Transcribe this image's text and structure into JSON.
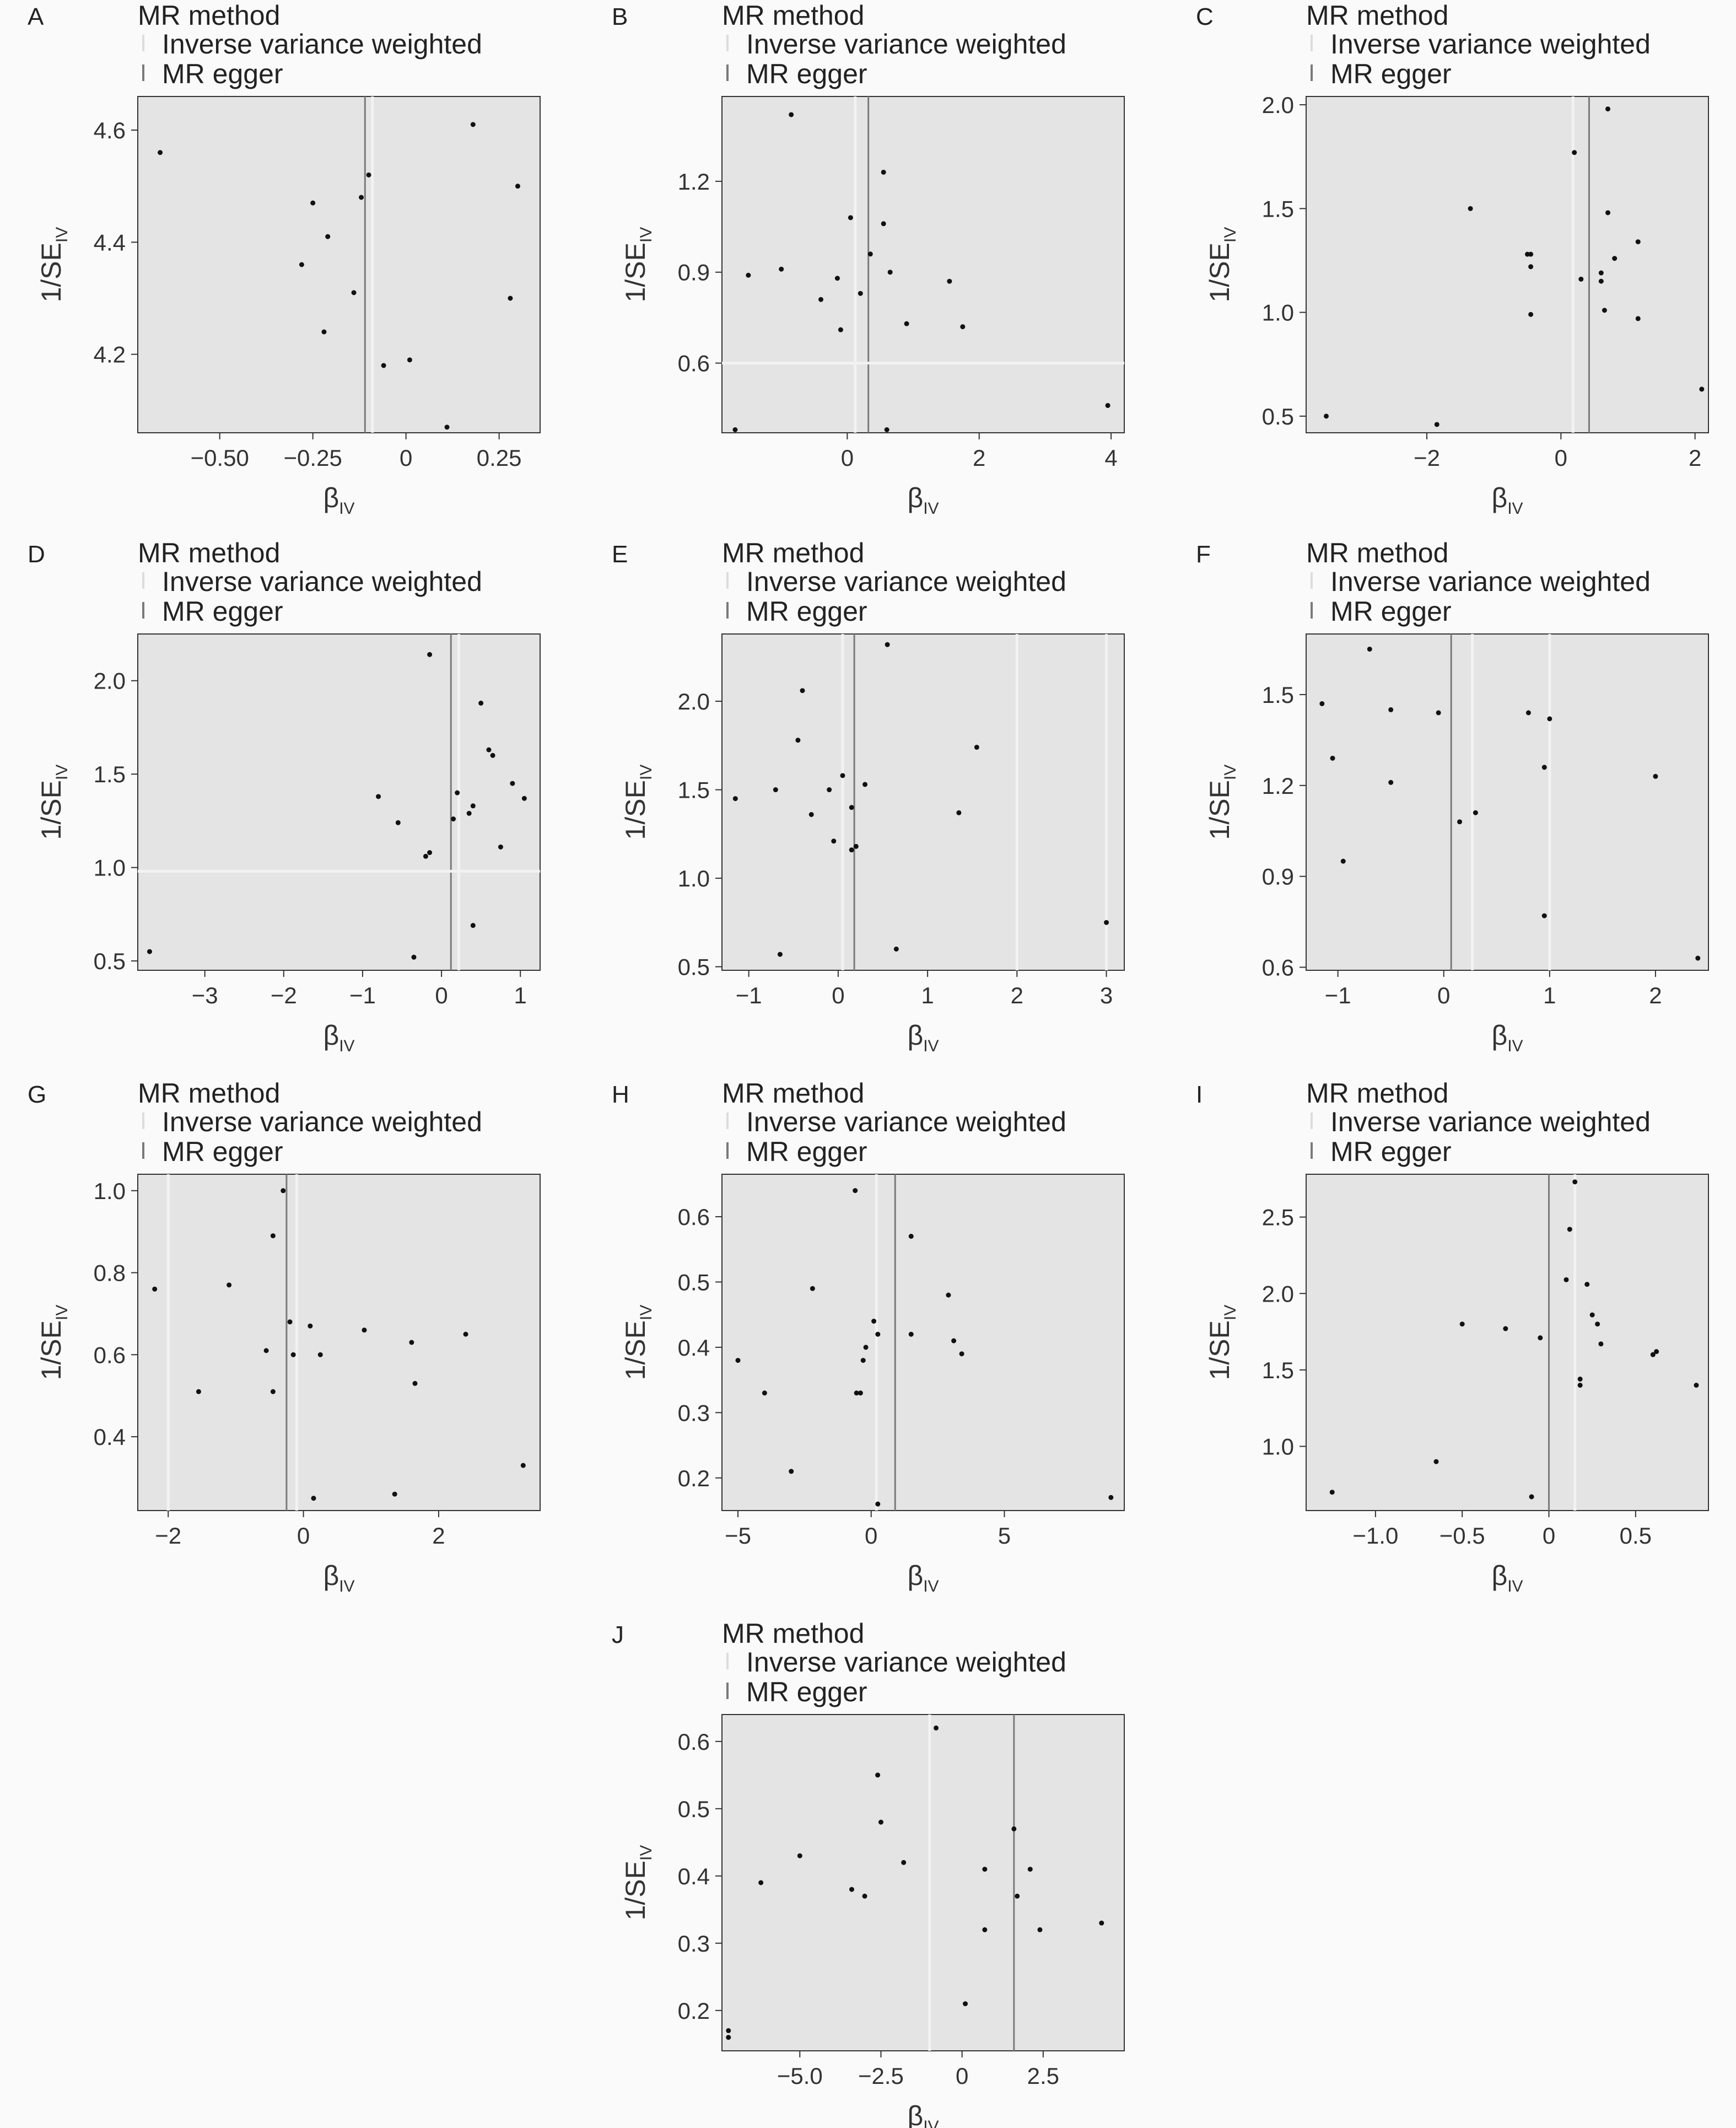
{
  "legend": {
    "title": "MR method",
    "items": [
      {
        "label": "Inverse variance weighted",
        "color": "#f2f2f2"
      },
      {
        "label": "MR egger",
        "color": "#7a7a7a"
      }
    ]
  },
  "axis_labels": {
    "x_main": "β",
    "x_sub": "IV",
    "y_main": "1/SE",
    "y_sub": "IV"
  },
  "chart_data": [
    {
      "letter": "A",
      "type": "scatter",
      "xlim": [
        -0.72,
        0.36
      ],
      "ylim": [
        4.06,
        4.66
      ],
      "xticks": [
        -0.5,
        -0.25,
        0,
        0.25
      ],
      "xtick_labels": [
        "−0.50",
        "−0.25",
        "0",
        "0.25"
      ],
      "yticks": [
        4.2,
        4.4,
        4.6
      ],
      "ytick_labels": [
        "4.2",
        "4.4",
        "4.6"
      ],
      "points": [
        [
          -0.66,
          4.56
        ],
        [
          -0.28,
          4.36
        ],
        [
          -0.25,
          4.47
        ],
        [
          -0.22,
          4.24
        ],
        [
          -0.21,
          4.41
        ],
        [
          -0.14,
          4.31
        ],
        [
          -0.12,
          4.48
        ],
        [
          -0.1,
          4.52
        ],
        [
          -0.06,
          4.18
        ],
        [
          0.01,
          4.19
        ],
        [
          0.11,
          4.07
        ],
        [
          0.18,
          4.61
        ],
        [
          0.28,
          4.3
        ],
        [
          0.3,
          4.5
        ]
      ],
      "vlines": [
        {
          "method": "Inverse variance weighted",
          "x": -0.09
        },
        {
          "method": "MR egger",
          "x": -0.11
        }
      ],
      "hlines": []
    },
    {
      "letter": "B",
      "type": "scatter",
      "xlim": [
        -1.9,
        4.2
      ],
      "ylim": [
        0.37,
        1.48
      ],
      "xticks": [
        0,
        2,
        4
      ],
      "xtick_labels": [
        "0",
        "2",
        "4"
      ],
      "yticks": [
        0.6,
        0.9,
        1.2
      ],
      "ytick_labels": [
        "0.6",
        "0.9",
        "1.2"
      ],
      "points": [
        [
          -1.7,
          0.38
        ],
        [
          -1.5,
          0.89
        ],
        [
          -1.0,
          0.91
        ],
        [
          -0.85,
          1.42
        ],
        [
          -0.4,
          0.81
        ],
        [
          -0.15,
          0.88
        ],
        [
          -0.1,
          0.71
        ],
        [
          0.05,
          1.08
        ],
        [
          0.2,
          0.83
        ],
        [
          0.35,
          0.96
        ],
        [
          0.55,
          1.23
        ],
        [
          0.55,
          1.06
        ],
        [
          0.6,
          0.38
        ],
        [
          0.65,
          0.9
        ],
        [
          0.9,
          0.73
        ],
        [
          1.55,
          0.87
        ],
        [
          1.75,
          0.72
        ],
        [
          3.95,
          0.46
        ]
      ],
      "vlines": [
        {
          "method": "Inverse variance weighted",
          "x": 0.12
        },
        {
          "method": "MR egger",
          "x": 0.32
        }
      ],
      "hlines": [
        {
          "method": "Inverse variance weighted",
          "y": 0.6
        }
      ]
    },
    {
      "letter": "C",
      "type": "scatter",
      "xlim": [
        -3.8,
        2.2
      ],
      "ylim": [
        0.42,
        2.04
      ],
      "xticks": [
        -2,
        0,
        2
      ],
      "xtick_labels": [
        "−2",
        "0",
        "2"
      ],
      "yticks": [
        0.5,
        1.0,
        1.5,
        2.0
      ],
      "ytick_labels": [
        "0.5",
        "1.0",
        "1.5",
        "2.0"
      ],
      "points": [
        [
          -3.5,
          0.5
        ],
        [
          -1.85,
          0.46
        ],
        [
          -1.35,
          1.5
        ],
        [
          -0.5,
          1.28
        ],
        [
          -0.45,
          1.28
        ],
        [
          -0.45,
          1.22
        ],
        [
          -0.45,
          0.99
        ],
        [
          0.2,
          1.77
        ],
        [
          0.3,
          1.16
        ],
        [
          0.6,
          1.15
        ],
        [
          0.6,
          1.19
        ],
        [
          0.65,
          1.01
        ],
        [
          0.7,
          1.48
        ],
        [
          0.7,
          1.98
        ],
        [
          0.8,
          1.26
        ],
        [
          1.15,
          1.34
        ],
        [
          1.15,
          0.97
        ],
        [
          2.1,
          0.63
        ]
      ],
      "vlines": [
        {
          "method": "Inverse variance weighted",
          "x": 0.18
        },
        {
          "method": "MR egger",
          "x": 0.42
        }
      ],
      "hlines": []
    },
    {
      "letter": "D",
      "type": "scatter",
      "xlim": [
        -3.85,
        1.25
      ],
      "ylim": [
        0.45,
        2.25
      ],
      "xticks": [
        -3,
        -2,
        -1,
        0,
        1
      ],
      "xtick_labels": [
        "−3",
        "−2",
        "−1",
        "0",
        "1"
      ],
      "yticks": [
        0.5,
        1.0,
        1.5,
        2.0
      ],
      "ytick_labels": [
        "0.5",
        "1.0",
        "1.5",
        "2.0"
      ],
      "points": [
        [
          -3.7,
          0.55
        ],
        [
          -0.8,
          1.38
        ],
        [
          -0.55,
          1.24
        ],
        [
          -0.35,
          0.52
        ],
        [
          -0.2,
          1.06
        ],
        [
          -0.15,
          1.08
        ],
        [
          -0.15,
          2.14
        ],
        [
          0.15,
          1.26
        ],
        [
          0.2,
          1.4
        ],
        [
          0.35,
          1.29
        ],
        [
          0.4,
          1.33
        ],
        [
          0.4,
          0.69
        ],
        [
          0.5,
          1.88
        ],
        [
          0.6,
          1.63
        ],
        [
          0.65,
          1.6
        ],
        [
          0.75,
          1.11
        ],
        [
          0.9,
          1.45
        ],
        [
          1.05,
          1.37
        ]
      ],
      "vlines": [
        {
          "method": "Inverse variance weighted",
          "x": 0.22
        },
        {
          "method": "MR egger",
          "x": 0.12
        }
      ],
      "hlines": [
        {
          "method": "Inverse variance weighted",
          "y": 0.98
        }
      ]
    },
    {
      "letter": "E",
      "type": "scatter",
      "xlim": [
        -1.3,
        3.2
      ],
      "ylim": [
        0.48,
        2.38
      ],
      "xticks": [
        -1,
        0,
        1,
        2,
        3
      ],
      "xtick_labels": [
        "−1",
        "0",
        "1",
        "2",
        "3"
      ],
      "yticks": [
        0.5,
        1.0,
        1.5,
        2.0
      ],
      "ytick_labels": [
        "0.5",
        "1.0",
        "1.5",
        "2.0"
      ],
      "points": [
        [
          -1.15,
          1.45
        ],
        [
          -0.7,
          1.5
        ],
        [
          -0.65,
          0.57
        ],
        [
          -0.45,
          1.78
        ],
        [
          -0.4,
          2.06
        ],
        [
          -0.3,
          1.36
        ],
        [
          -0.1,
          1.5
        ],
        [
          -0.05,
          1.21
        ],
        [
          0.05,
          1.58
        ],
        [
          0.15,
          1.16
        ],
        [
          0.15,
          1.4
        ],
        [
          0.2,
          1.18
        ],
        [
          0.3,
          1.53
        ],
        [
          0.55,
          2.32
        ],
        [
          0.65,
          0.6
        ],
        [
          1.35,
          1.37
        ],
        [
          1.55,
          1.74
        ],
        [
          3.0,
          0.75
        ]
      ],
      "vlines": [
        {
          "method": "Inverse variance weighted",
          "x": 0.05
        },
        {
          "method": "MR egger",
          "x": 0.18
        },
        {
          "method": "Inverse variance weighted",
          "x": 2.0
        },
        {
          "method": "Inverse variance weighted",
          "x": 3.0
        }
      ],
      "hlines": []
    },
    {
      "letter": "F",
      "type": "scatter",
      "xlim": [
        -1.3,
        2.5
      ],
      "ylim": [
        0.59,
        1.7
      ],
      "xticks": [
        -1,
        0,
        1,
        2
      ],
      "xtick_labels": [
        "−1",
        "0",
        "1",
        "2"
      ],
      "yticks": [
        0.6,
        0.9,
        1.2,
        1.5
      ],
      "ytick_labels": [
        "0.6",
        "0.9",
        "1.2",
        "1.5"
      ],
      "points": [
        [
          -1.15,
          1.47
        ],
        [
          -1.05,
          1.29
        ],
        [
          -0.95,
          0.95
        ],
        [
          -0.7,
          1.65
        ],
        [
          -0.5,
          1.45
        ],
        [
          -0.5,
          1.21
        ],
        [
          -0.05,
          1.44
        ],
        [
          0.15,
          1.08
        ],
        [
          0.3,
          1.11
        ],
        [
          0.8,
          1.44
        ],
        [
          0.95,
          1.26
        ],
        [
          0.95,
          0.77
        ],
        [
          1.0,
          1.42
        ],
        [
          2.0,
          1.23
        ],
        [
          2.4,
          0.63
        ]
      ],
      "vlines": [
        {
          "method": "MR egger",
          "x": 0.07
        },
        {
          "method": "Inverse variance weighted",
          "x": 0.27
        },
        {
          "method": "Inverse variance weighted",
          "x": 1.0
        }
      ],
      "hlines": []
    },
    {
      "letter": "G",
      "type": "scatter",
      "xlim": [
        -2.45,
        3.5
      ],
      "ylim": [
        0.22,
        1.04
      ],
      "xticks": [
        -2,
        0,
        2
      ],
      "xtick_labels": [
        "−2",
        "0",
        "2"
      ],
      "yticks": [
        0.4,
        0.6,
        0.8,
        1.0
      ],
      "ytick_labels": [
        "0.4",
        "0.6",
        "0.8",
        "1.0"
      ],
      "points": [
        [
          -2.2,
          0.76
        ],
        [
          -1.55,
          0.51
        ],
        [
          -1.1,
          0.77
        ],
        [
          -0.55,
          0.61
        ],
        [
          -0.45,
          0.89
        ],
        [
          -0.45,
          0.51
        ],
        [
          -0.3,
          1.0
        ],
        [
          -0.2,
          0.68
        ],
        [
          -0.15,
          0.6
        ],
        [
          0.1,
          0.67
        ],
        [
          0.15,
          0.25
        ],
        [
          0.25,
          0.6
        ],
        [
          0.9,
          0.66
        ],
        [
          1.35,
          0.26
        ],
        [
          1.6,
          0.63
        ],
        [
          1.65,
          0.53
        ],
        [
          2.4,
          0.65
        ],
        [
          3.25,
          0.33
        ]
      ],
      "vlines": [
        {
          "method": "MR egger",
          "x": -0.25
        },
        {
          "method": "Inverse variance weighted",
          "x": -0.1
        },
        {
          "method": "Inverse variance weighted",
          "x": -2.0
        }
      ],
      "hlines": []
    },
    {
      "letter": "H",
      "type": "scatter",
      "xlim": [
        -5.6,
        9.5
      ],
      "ylim": [
        0.15,
        0.665
      ],
      "xticks": [
        -5,
        0,
        5
      ],
      "xtick_labels": [
        "−5",
        "0",
        "5"
      ],
      "yticks": [
        0.2,
        0.3,
        0.4,
        0.5,
        0.6
      ],
      "ytick_labels": [
        "0.2",
        "0.3",
        "0.4",
        "0.5",
        "0.6"
      ],
      "points": [
        [
          -5.0,
          0.38
        ],
        [
          -4.0,
          0.33
        ],
        [
          -3.0,
          0.21
        ],
        [
          -2.2,
          0.49
        ],
        [
          -0.6,
          0.64
        ],
        [
          -0.55,
          0.33
        ],
        [
          -0.4,
          0.33
        ],
        [
          -0.3,
          0.38
        ],
        [
          -0.2,
          0.4
        ],
        [
          0.1,
          0.44
        ],
        [
          0.25,
          0.42
        ],
        [
          0.25,
          0.16
        ],
        [
          1.5,
          0.57
        ],
        [
          1.5,
          0.42
        ],
        [
          2.9,
          0.48
        ],
        [
          3.1,
          0.41
        ],
        [
          3.4,
          0.39
        ],
        [
          9.0,
          0.17
        ]
      ],
      "vlines": [
        {
          "method": "Inverse variance weighted",
          "x": 0.2
        },
        {
          "method": "MR egger",
          "x": 0.9
        }
      ],
      "hlines": []
    },
    {
      "letter": "I",
      "type": "scatter",
      "xlim": [
        -1.4,
        0.92
      ],
      "ylim": [
        0.58,
        2.78
      ],
      "xticks": [
        -1.0,
        -0.5,
        0,
        0.5
      ],
      "xtick_labels": [
        "−1.0",
        "−0.5",
        "0",
        "0.5"
      ],
      "yticks": [
        1.0,
        1.5,
        2.0,
        2.5
      ],
      "ytick_labels": [
        "1.0",
        "1.5",
        "2.0",
        "2.5"
      ],
      "points": [
        [
          -1.25,
          0.7
        ],
        [
          -0.65,
          0.9
        ],
        [
          -0.5,
          1.8
        ],
        [
          -0.25,
          1.77
        ],
        [
          -0.1,
          0.67
        ],
        [
          -0.05,
          1.71
        ],
        [
          0.1,
          2.09
        ],
        [
          0.12,
          2.42
        ],
        [
          0.15,
          2.73
        ],
        [
          0.18,
          1.44
        ],
        [
          0.18,
          1.4
        ],
        [
          0.22,
          2.06
        ],
        [
          0.25,
          1.86
        ],
        [
          0.28,
          1.8
        ],
        [
          0.3,
          1.67
        ],
        [
          0.6,
          1.6
        ],
        [
          0.62,
          1.62
        ],
        [
          0.85,
          1.4
        ]
      ],
      "vlines": [
        {
          "method": "MR egger",
          "x": 0.0
        },
        {
          "method": "Inverse variance weighted",
          "x": 0.15
        }
      ],
      "hlines": []
    },
    {
      "letter": "J",
      "type": "scatter",
      "xlim": [
        -7.4,
        5.0
      ],
      "ylim": [
        0.14,
        0.64
      ],
      "xticks": [
        -5.0,
        -2.5,
        0,
        2.5
      ],
      "xtick_labels": [
        "−5.0",
        "−2.5",
        "0",
        "2.5"
      ],
      "yticks": [
        0.2,
        0.3,
        0.4,
        0.5,
        0.6
      ],
      "ytick_labels": [
        "0.2",
        "0.3",
        "0.4",
        "0.5",
        "0.6"
      ],
      "points": [
        [
          -7.2,
          0.16
        ],
        [
          -7.2,
          0.17
        ],
        [
          -6.2,
          0.39
        ],
        [
          -5.0,
          0.43
        ],
        [
          -3.4,
          0.38
        ],
        [
          -3.0,
          0.37
        ],
        [
          -2.6,
          0.55
        ],
        [
          -2.5,
          0.48
        ],
        [
          -1.8,
          0.42
        ],
        [
          -0.8,
          0.62
        ],
        [
          0.1,
          0.21
        ],
        [
          0.7,
          0.32
        ],
        [
          0.7,
          0.41
        ],
        [
          1.6,
          0.47
        ],
        [
          1.7,
          0.37
        ],
        [
          2.1,
          0.41
        ],
        [
          2.4,
          0.32
        ],
        [
          4.3,
          0.33
        ]
      ],
      "vlines": [
        {
          "method": "Inverse variance weighted",
          "x": -1.0
        },
        {
          "method": "MR egger",
          "x": 1.6
        }
      ],
      "hlines": []
    }
  ]
}
